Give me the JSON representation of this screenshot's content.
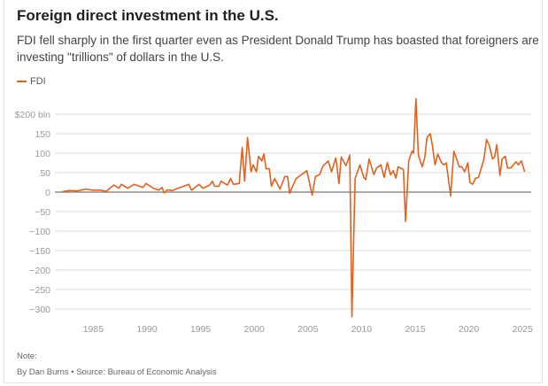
{
  "header": {
    "title": "Foreign direct investment in the U.S.",
    "subtitle": "FDI fell sharply in the first quarter even as President Donald Trump has boasted that foreigners are investing \"trillions\" of dollars in the U.S."
  },
  "footer": {
    "note": "Note:",
    "source": "By Dan Burns • Source: Bureau of Economic Analysis"
  },
  "chart_data": {
    "type": "line",
    "title": "Foreign direct investment in the U.S.",
    "xlabel": "",
    "ylabel": "",
    "ylim": [
      -320,
      240
    ],
    "xlim": [
      1981.5,
      2025.3
    ],
    "yticks": [
      200,
      150,
      100,
      50,
      0,
      -50,
      -100,
      -150,
      -200,
      -250,
      -300
    ],
    "ytick_labels": [
      "$200 bln",
      "150",
      "100",
      "50",
      "0",
      "−50",
      "−100",
      "−150",
      "−200",
      "−250",
      "−300"
    ],
    "xticks": [
      1985,
      1990,
      1995,
      2000,
      2005,
      2010,
      2015,
      2020,
      2025
    ],
    "xtick_labels": [
      "1985",
      "1990",
      "1995",
      "2000",
      "2005",
      "2010",
      "2015",
      "2020",
      "2025"
    ],
    "grid": true,
    "legend": "top-left",
    "color": "#e0621f",
    "series": [
      {
        "name": "FDI",
        "points": [
          [
            1982.1,
            1
          ],
          [
            1982.8,
            4
          ],
          [
            1983.5,
            3
          ],
          [
            1984.3,
            8
          ],
          [
            1984.9,
            5
          ],
          [
            1985.7,
            5
          ],
          [
            1986.2,
            2
          ],
          [
            1986.9,
            18
          ],
          [
            1987.4,
            10
          ],
          [
            1987.6,
            20
          ],
          [
            1988.2,
            10
          ],
          [
            1988.8,
            20
          ],
          [
            1989.65,
            12
          ],
          [
            1989.9,
            22
          ],
          [
            1990.6,
            10
          ],
          [
            1991.1,
            5
          ],
          [
            1991.4,
            12
          ],
          [
            1991.6,
            -2
          ],
          [
            1991.9,
            6
          ],
          [
            1992.4,
            4
          ],
          [
            1992.9,
            10
          ],
          [
            1993.9,
            20
          ],
          [
            1994.15,
            5
          ],
          [
            1994.85,
            20
          ],
          [
            1995.2,
            10
          ],
          [
            1995.85,
            18
          ],
          [
            1996.1,
            28
          ],
          [
            1996.3,
            15
          ],
          [
            1996.7,
            15
          ],
          [
            1996.9,
            28
          ],
          [
            1997.5,
            18
          ],
          [
            1997.8,
            35
          ],
          [
            1998.06,
            20
          ],
          [
            1998.6,
            22
          ],
          [
            1998.88,
            115
          ],
          [
            1999.1,
            28
          ],
          [
            1999.37,
            140
          ],
          [
            1999.7,
            52
          ],
          [
            1999.9,
            70
          ],
          [
            2000.2,
            52
          ],
          [
            2000.4,
            92
          ],
          [
            2000.7,
            80
          ],
          [
            2000.9,
            98
          ],
          [
            2001.1,
            60
          ],
          [
            2001.4,
            60
          ],
          [
            2001.6,
            15
          ],
          [
            2001.9,
            35
          ],
          [
            2002.4,
            8
          ],
          [
            2002.85,
            40
          ],
          [
            2003.1,
            40
          ],
          [
            2003.3,
            -3
          ],
          [
            2003.9,
            35
          ],
          [
            2004.9,
            55
          ],
          [
            2005.4,
            -8
          ],
          [
            2005.7,
            40
          ],
          [
            2006.1,
            45
          ],
          [
            2006.4,
            67
          ],
          [
            2006.9,
            80
          ],
          [
            2007.2,
            52
          ],
          [
            2007.6,
            88
          ],
          [
            2007.9,
            22
          ],
          [
            2008.1,
            90
          ],
          [
            2008.55,
            68
          ],
          [
            2008.9,
            95
          ],
          [
            2009.1,
            -320
          ],
          [
            2009.4,
            35
          ],
          [
            2009.85,
            70
          ],
          [
            2010.2,
            38
          ],
          [
            2010.4,
            32
          ],
          [
            2010.7,
            85
          ],
          [
            2011.15,
            45
          ],
          [
            2011.4,
            62
          ],
          [
            2011.8,
            70
          ],
          [
            2012.1,
            38
          ],
          [
            2012.4,
            76
          ],
          [
            2012.7,
            44
          ],
          [
            2012.95,
            55
          ],
          [
            2013.2,
            36
          ],
          [
            2013.4,
            65
          ],
          [
            2013.9,
            58
          ],
          [
            2014.1,
            -75
          ],
          [
            2014.4,
            80
          ],
          [
            2014.7,
            105
          ],
          [
            2014.85,
            100
          ],
          [
            2015.07,
            240
          ],
          [
            2015.3,
            95
          ],
          [
            2015.65,
            65
          ],
          [
            2015.9,
            90
          ],
          [
            2016.1,
            140
          ],
          [
            2016.4,
            150
          ],
          [
            2016.6,
            120
          ],
          [
            2016.85,
            70
          ],
          [
            2017.1,
            98
          ],
          [
            2017.4,
            78
          ],
          [
            2017.65,
            70
          ],
          [
            2017.9,
            75
          ],
          [
            2018.3,
            -10
          ],
          [
            2018.6,
            105
          ],
          [
            2018.8,
            90
          ],
          [
            2019.1,
            65
          ],
          [
            2019.35,
            65
          ],
          [
            2019.6,
            52
          ],
          [
            2019.9,
            75
          ],
          [
            2020.1,
            25
          ],
          [
            2020.35,
            20
          ],
          [
            2020.6,
            35
          ],
          [
            2020.9,
            38
          ],
          [
            2021.2,
            65
          ],
          [
            2021.4,
            85
          ],
          [
            2021.65,
            135
          ],
          [
            2021.9,
            120
          ],
          [
            2022.2,
            85
          ],
          [
            2022.4,
            90
          ],
          [
            2022.6,
            122
          ],
          [
            2022.9,
            43
          ],
          [
            2023.1,
            85
          ],
          [
            2023.4,
            92
          ],
          [
            2023.6,
            62
          ],
          [
            2023.9,
            62
          ],
          [
            2024.1,
            68
          ],
          [
            2024.4,
            78
          ],
          [
            2024.6,
            70
          ],
          [
            2024.9,
            80
          ],
          [
            2025.2,
            52
          ]
        ]
      }
    ]
  }
}
